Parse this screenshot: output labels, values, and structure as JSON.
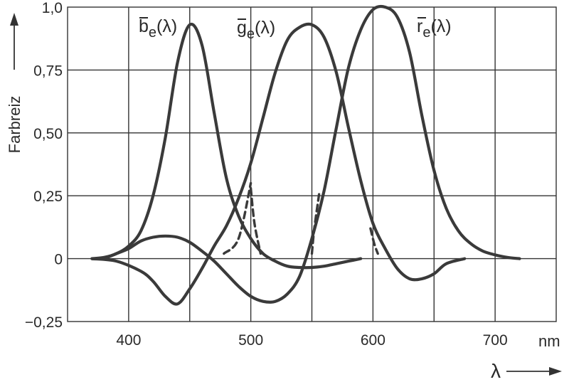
{
  "chart_data": {
    "type": "line",
    "xlabel": "λ",
    "xunit": "nm",
    "ylabel": "Farbreiz",
    "xlim": [
      350,
      750
    ],
    "ylim": [
      -0.25,
      1.0
    ],
    "x_ticks": [
      400,
      500,
      600,
      700
    ],
    "y_ticks": [
      -0.25,
      0,
      0.25,
      0.5,
      0.75,
      1.0
    ],
    "y_tick_labels": [
      "−0,25",
      "0",
      "0,25",
      "0,50",
      "0,75",
      "1,0"
    ],
    "grid": true,
    "series": [
      {
        "name": "b̄e(λ)",
        "label_base": "b",
        "label_sub": "e",
        "label_arg": "(λ)",
        "color": "#3a3a3a",
        "points": [
          [
            370,
            0
          ],
          [
            380,
            0.005
          ],
          [
            390,
            0.02
          ],
          [
            400,
            0.05
          ],
          [
            410,
            0.11
          ],
          [
            420,
            0.25
          ],
          [
            430,
            0.48
          ],
          [
            440,
            0.78
          ],
          [
            450,
            0.93
          ],
          [
            460,
            0.85
          ],
          [
            470,
            0.58
          ],
          [
            480,
            0.32
          ],
          [
            490,
            0.17
          ],
          [
            500,
            0.08
          ],
          [
            510,
            0.02
          ],
          [
            520,
            -0.01
          ],
          [
            530,
            -0.03
          ],
          [
            540,
            -0.035
          ],
          [
            550,
            -0.035
          ],
          [
            560,
            -0.03
          ],
          [
            570,
            -0.02
          ],
          [
            580,
            -0.01
          ],
          [
            590,
            0
          ]
        ]
      },
      {
        "name": "ḡe(λ)",
        "label_base": "g",
        "label_sub": "e",
        "label_arg": "(λ)",
        "color": "#3a3a3a",
        "points": [
          [
            370,
            0
          ],
          [
            390,
            -0.01
          ],
          [
            410,
            -0.05
          ],
          [
            420,
            -0.09
          ],
          [
            430,
            -0.15
          ],
          [
            440,
            -0.18
          ],
          [
            450,
            -0.12
          ],
          [
            460,
            -0.04
          ],
          [
            470,
            0.05
          ],
          [
            480,
            0.13
          ],
          [
            490,
            0.24
          ],
          [
            500,
            0.38
          ],
          [
            510,
            0.56
          ],
          [
            520,
            0.74
          ],
          [
            530,
            0.87
          ],
          [
            540,
            0.92
          ],
          [
            550,
            0.93
          ],
          [
            560,
            0.88
          ],
          [
            570,
            0.74
          ],
          [
            580,
            0.52
          ],
          [
            590,
            0.31
          ],
          [
            600,
            0.14
          ],
          [
            610,
            0.04
          ],
          [
            620,
            -0.04
          ],
          [
            630,
            -0.08
          ],
          [
            640,
            -0.08
          ],
          [
            650,
            -0.06
          ],
          [
            660,
            -0.02
          ],
          [
            675,
            0
          ]
        ]
      },
      {
        "name": "r̄e(λ)",
        "label_base": "r",
        "label_sub": "e",
        "label_arg": "(λ)",
        "color": "#3a3a3a",
        "points": [
          [
            380,
            0
          ],
          [
            390,
            0.02
          ],
          [
            400,
            0.04
          ],
          [
            410,
            0.07
          ],
          [
            420,
            0.085
          ],
          [
            430,
            0.09
          ],
          [
            440,
            0.085
          ],
          [
            450,
            0.065
          ],
          [
            460,
            0.03
          ],
          [
            470,
            -0.01
          ],
          [
            480,
            -0.06
          ],
          [
            490,
            -0.11
          ],
          [
            500,
            -0.15
          ],
          [
            510,
            -0.17
          ],
          [
            520,
            -0.17
          ],
          [
            530,
            -0.14
          ],
          [
            540,
            -0.07
          ],
          [
            550,
            0.08
          ],
          [
            560,
            0.27
          ],
          [
            570,
            0.52
          ],
          [
            580,
            0.76
          ],
          [
            590,
            0.91
          ],
          [
            600,
            0.99
          ],
          [
            610,
            1.0
          ],
          [
            620,
            0.96
          ],
          [
            630,
            0.82
          ],
          [
            640,
            0.57
          ],
          [
            650,
            0.35
          ],
          [
            660,
            0.2
          ],
          [
            670,
            0.11
          ],
          [
            680,
            0.06
          ],
          [
            690,
            0.03
          ],
          [
            700,
            0.015
          ],
          [
            710,
            0.005
          ],
          [
            720,
            0
          ]
        ]
      }
    ],
    "dashed_segments": [
      [
        [
          478,
          0.02
        ],
        [
          490,
          0.08
        ],
        [
          500,
          0.3
        ]
      ],
      [
        [
          500,
          0.28
        ],
        [
          503,
          0.14
        ],
        [
          508,
          0.02
        ]
      ],
      [
        [
          550,
          0.02
        ],
        [
          552,
          0.12
        ],
        [
          556,
          0.26
        ]
      ],
      [
        [
          598,
          0.12
        ],
        [
          601,
          0.06
        ],
        [
          604,
          0.02
        ]
      ]
    ]
  }
}
